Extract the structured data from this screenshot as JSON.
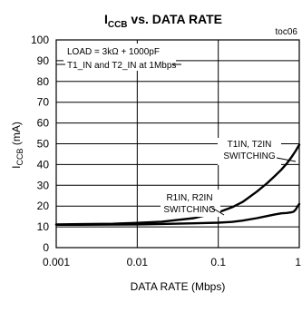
{
  "chart_data": {
    "type": "line",
    "title_main": "I",
    "title_sub": "CCB",
    "title_rest": " vs. DATA RATE",
    "code": "toc06",
    "xlabel": "DATA RATE (Mbps)",
    "ylabel_main": "I",
    "ylabel_sub": "CCB",
    "ylabel_rest": " (mA)",
    "x_scale": "log",
    "xlim": [
      0.001,
      1
    ],
    "ylim": [
      0,
      100
    ],
    "grid": true,
    "x_ticks": [
      {
        "value": 0.001,
        "label": "0.001"
      },
      {
        "value": 0.01,
        "label": "0.01"
      },
      {
        "value": 0.1,
        "label": "0.1"
      },
      {
        "value": 1,
        "label": "1"
      }
    ],
    "y_ticks": [
      {
        "value": 0,
        "label": "0"
      },
      {
        "value": 10,
        "label": "10"
      },
      {
        "value": 20,
        "label": "20"
      },
      {
        "value": 30,
        "label": "30"
      },
      {
        "value": 40,
        "label": "40"
      },
      {
        "value": 50,
        "label": "50"
      },
      {
        "value": 60,
        "label": "60"
      },
      {
        "value": 70,
        "label": "70"
      },
      {
        "value": 80,
        "label": "80"
      },
      {
        "value": 90,
        "label": "90"
      },
      {
        "value": 100,
        "label": "100"
      }
    ],
    "conditions": {
      "line1": "LOAD = 3kΩ + 1000pF",
      "line2": "T1_IN and T2_IN at 1Mbps"
    },
    "series": [
      {
        "label_line1": "T1IN, T2IN",
        "label_line2": "SWITCHING",
        "x": [
          0.001,
          0.002,
          0.005,
          0.01,
          0.02,
          0.05,
          0.1,
          0.15,
          0.2,
          0.3,
          0.4,
          0.5,
          0.6,
          0.7,
          0.8,
          0.9,
          1.0
        ],
        "y": [
          11.2,
          11.3,
          11.5,
          11.9,
          12.5,
          14.2,
          17.0,
          19.5,
          22.0,
          27.0,
          31.0,
          34.5,
          37.5,
          40.5,
          43.5,
          46.5,
          49.5
        ]
      },
      {
        "label_line1": "R1IN, R2IN",
        "label_line2": "SWITCHING",
        "x": [
          0.001,
          0.002,
          0.005,
          0.01,
          0.02,
          0.05,
          0.1,
          0.15,
          0.2,
          0.3,
          0.4,
          0.5,
          0.6,
          0.7,
          0.8,
          0.85,
          0.9,
          0.95,
          1.0
        ],
        "y": [
          11.0,
          11.0,
          11.1,
          11.2,
          11.4,
          11.7,
          12.0,
          12.4,
          13.0,
          14.2,
          15.2,
          16.0,
          16.5,
          16.7,
          17.0,
          17.3,
          18.2,
          19.8,
          21.0
        ]
      }
    ]
  }
}
